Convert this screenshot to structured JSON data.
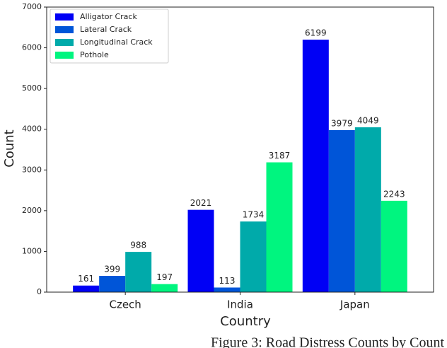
{
  "chart_data": {
    "type": "bar",
    "caption": "Figure 3: Road Distress Counts by Count",
    "xlabel": "Country",
    "ylabel": "Count",
    "categories": [
      "Czech",
      "India",
      "Japan"
    ],
    "series": [
      {
        "name": "Alligator Crack",
        "color": "#0000f5",
        "values": [
          161,
          2021,
          6199
        ]
      },
      {
        "name": "Lateral Crack",
        "color": "#0055d8",
        "values": [
          399,
          113,
          3979
        ]
      },
      {
        "name": "Longitudinal Crack",
        "color": "#00aaaa",
        "values": [
          988,
          1734,
          4049
        ]
      },
      {
        "name": "Pothole",
        "color": "#00f57f",
        "values": [
          197,
          3187,
          2243
        ]
      }
    ],
    "ylim": [
      0,
      7000
    ],
    "yticks": [
      0,
      1000,
      2000,
      3000,
      4000,
      5000,
      6000,
      7000
    ],
    "legend": "upper left",
    "grid": false
  }
}
